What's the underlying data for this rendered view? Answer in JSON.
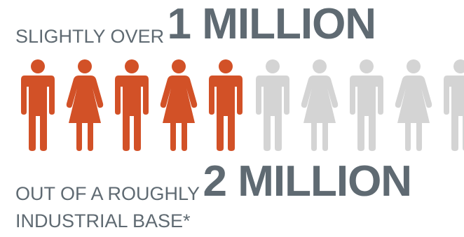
{
  "headline": {
    "line1_small": "SLIGHTLY OVER",
    "line1_big": "1 MILLION",
    "line2_small": "OUT OF A ROUGHLY",
    "line2_big": "2 MILLION",
    "line3_small": "INDUSTRIAL BASE*"
  },
  "colors": {
    "text": "#5f6a72",
    "highlight": "#d25127",
    "muted": "#d4d4d4"
  },
  "people": [
    {
      "type": "male-person-icon",
      "highlighted": true
    },
    {
      "type": "female-person-icon",
      "highlighted": true
    },
    {
      "type": "male-person-icon",
      "highlighted": true
    },
    {
      "type": "female-person-icon",
      "highlighted": true
    },
    {
      "type": "male-person-icon",
      "highlighted": true
    },
    {
      "type": "male-person-icon",
      "highlighted": false
    },
    {
      "type": "female-person-icon",
      "highlighted": false
    },
    {
      "type": "male-person-icon",
      "highlighted": false
    },
    {
      "type": "female-person-icon",
      "highlighted": false
    },
    {
      "type": "male-person-icon",
      "highlighted": false
    }
  ]
}
